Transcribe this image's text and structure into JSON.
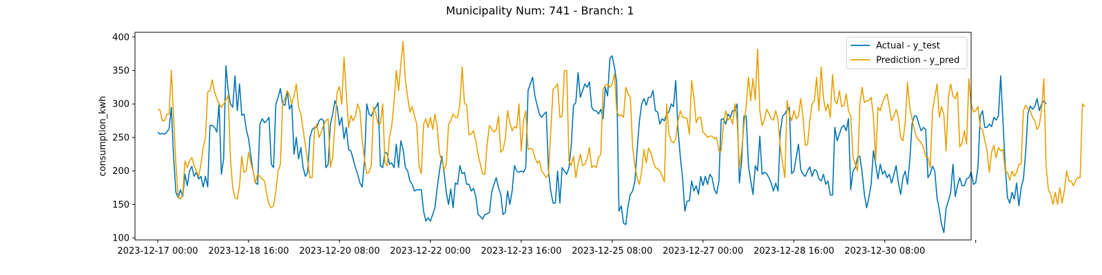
{
  "chart_data": {
    "type": "line",
    "title": "Municipality Num: 741 - Branch: 1",
    "xlabel": "",
    "ylabel": "consumption_kwh",
    "ylim": [
      97,
      407
    ],
    "xlim": [
      "2023-12-16 14:00",
      "2023-12-31 22:00"
    ],
    "yticks": [
      100,
      150,
      200,
      250,
      300,
      350,
      400
    ],
    "xticks": [
      "2023-12-17 00:00",
      "2023-12-18 16:00",
      "2023-12-20 08:00",
      "2023-12-22 00:00",
      "2023-12-23 16:00",
      "2023-12-25 08:00",
      "2023-12-27 00:00",
      "2023-12-28 16:00",
      "2023-12-30 08:00",
      "2024-01-01 00:00"
    ],
    "xtick_labels": [
      "2023-12-17 00:00",
      "2023-12-18 16:00",
      "2023-12-20 08:00",
      "2023-12-22 00:00",
      "2023-12-23 16:00",
      "2023-12-25 08:00",
      "2023-12-27 00:00",
      "2023-12-28 16:00",
      "2023-12-30 08:00",
      ""
    ],
    "x_start": "2023-12-17 00:00",
    "x_step_hours": 1,
    "grid": false,
    "legend_position": "top-right",
    "series": [
      {
        "name": "Actual - y_test",
        "color": "#0072b2",
        "values": [
          258,
          255,
          256,
          255,
          258,
          263,
          295,
          220,
          168,
          160,
          172,
          162,
          195,
          178,
          200,
          207,
          192,
          198,
          188,
          192,
          176,
          192,
          176,
          268,
          268,
          265,
          258,
          300,
          195,
          218,
          357,
          320,
          300,
          295,
          342,
          290,
          330,
          283,
          285,
          262,
          248,
          222,
          200,
          182,
          180,
          270,
          278,
          272,
          275,
          280,
          210,
          205,
          300,
          310,
          323,
          300,
          298,
          320,
          292,
          300,
          225,
          250,
          218,
          235,
          205,
          192,
          198,
          250,
          262,
          265,
          265,
          275,
          278,
          275,
          205,
          210,
          270,
          285,
          305,
          295,
          268,
          280,
          248,
          265,
          232,
          230,
          218,
          205,
          195,
          182,
          176,
          215,
          300,
          285,
          282,
          290,
          295,
          302,
          208,
          205,
          228,
          226,
          210,
          212,
          205,
          240,
          205,
          245,
          232,
          205,
          200,
          185,
          180,
          170,
          172,
          172,
          172,
          140,
          125,
          130,
          125,
          135,
          145,
          175,
          200,
          222,
          198,
          168,
          150,
          173,
          145,
          182,
          180,
          208,
          196,
          198,
          180,
          180,
          170,
          174,
          162,
          135,
          132,
          128,
          135,
          136,
          138,
          168,
          180,
          190,
          175,
          165,
          135,
          138,
          170,
          150,
          170,
          208,
          200,
          198,
          200,
          198,
          205,
          320,
          330,
          340,
          312,
          298,
          285,
          280,
          285,
          288,
          200,
          170,
          152,
          152,
          200,
          152,
          205,
          200,
          195,
          205,
          238,
          298,
          302,
          347,
          310,
          320,
          330,
          325,
          333,
          295,
          290,
          290,
          285,
          292,
          278,
          325,
          312,
          368,
          372,
          355,
          332,
          140,
          148,
          122,
          120,
          148,
          165,
          170,
          185,
          232,
          275,
          300,
          308,
          298,
          310,
          310,
          320,
          290,
          288,
          270,
          278,
          275,
          285,
          288,
          300,
          296,
          335,
          262,
          222,
          190,
          140,
          155,
          155,
          185,
          170,
          178,
          165,
          192,
          178,
          192,
          180,
          195,
          190,
          172,
          166,
          185,
          277,
          278,
          270,
          285,
          280,
          290,
          290,
          300,
          182,
          215,
          282,
          282,
          208,
          185,
          165,
          208,
          200,
          252,
          195,
          198,
          196,
          190,
          182,
          170,
          182,
          170,
          258,
          282,
          285,
          292,
          295,
          196,
          200,
          220,
          240,
          202,
          195,
          192,
          200,
          206,
          192,
          202,
          200,
          188,
          185,
          195,
          180,
          185,
          164,
          164,
          265,
          245,
          255,
          265,
          268,
          260,
          278,
          172,
          200,
          205,
          220,
          222,
          198,
          165,
          145,
          160,
          180,
          230,
          210,
          188,
          210,
          195,
          200,
          190,
          195,
          182,
          195,
          208,
          182,
          165,
          190,
          200,
          180,
          215,
          270,
          282,
          282,
          270,
          260,
          265,
          262,
          190,
          196,
          207,
          200,
          160,
          142,
          120,
          108,
          145,
          155,
          168,
          210,
          162,
          178,
          190,
          178,
          178,
          188,
          190,
          198,
          180,
          182,
          205,
          282,
          290,
          265,
          265,
          270,
          266,
          280,
          276,
          282,
          342,
          275,
          207,
          160,
          152,
          168,
          158,
          182,
          148,
          175,
          188,
          228,
          286,
          297,
          292,
          296,
          308,
          290,
          300,
          305,
          300
        ]
      },
      {
        "name": "Prediction - y_pred",
        "color": "#e69f00",
        "values": [
          292,
          291,
          275,
          275,
          285,
          285,
          350,
          280,
          210,
          162,
          158,
          165,
          215,
          205,
          215,
          220,
          208,
          200,
          192,
          210,
          235,
          250,
          318,
          320,
          336,
          318,
          308,
          300,
          295,
          300,
          306,
          313,
          218,
          175,
          160,
          158,
          178,
          222,
          198,
          200,
          228,
          212,
          200,
          182,
          195,
          192,
          188,
          185,
          165,
          150,
          145,
          148,
          170,
          200,
          210,
          300,
          308,
          320,
          313,
          300,
          312,
          330,
          295,
          286,
          262,
          238,
          215,
          190,
          190,
          262,
          270,
          250,
          258,
          268,
          275,
          278,
          206,
          220,
          270,
          318,
          326,
          300,
          370,
          315,
          265,
          283,
          275,
          282,
          300,
          290,
          245,
          218,
          196,
          198,
          208,
          296,
          285,
          270,
          270,
          300,
          212,
          208,
          250,
          268,
          302,
          350,
          320,
          360,
          393,
          335,
          310,
          288,
          296,
          282,
          270,
          208,
          196,
          270,
          278,
          265,
          280,
          262,
          285,
          265,
          226,
          216,
          202,
          210,
          270,
          275,
          285,
          280,
          280,
          300,
          355,
          302,
          298,
          254,
          255,
          260,
          245,
          225,
          210,
          196,
          195,
          240,
          268,
          263,
          258,
          262,
          282,
          228,
          232,
          248,
          290,
          272,
          260,
          266,
          264,
          300,
          230,
          275,
          290,
          232,
          234,
          232,
          220,
          212,
          215,
          200,
          195,
          190,
          195,
          260,
          322,
          325,
          330,
          280,
          282,
          350,
          350,
          215,
          208,
          222,
          190,
          210,
          225,
          208,
          210,
          218,
          235,
          205,
          208,
          205,
          220,
          225,
          322,
          328,
          330,
          325,
          330,
          345,
          290,
          282,
          284,
          280,
          325,
          315,
          310,
          236,
          208,
          190,
          180,
          200,
          232,
          212,
          234,
          228,
          215,
          205,
          203,
          200,
          193,
          184,
          300,
          255,
          245,
          242,
          248,
          275,
          290,
          280,
          280,
          278,
          255,
          335,
          310,
          272,
          280,
          280,
          258,
          255,
          250,
          252,
          252,
          248,
          250,
          230,
          230,
          270,
          290,
          276,
          280,
          270,
          300,
          275,
          205,
          230,
          268,
          298,
          340,
          305,
          338,
          306,
          382,
          290,
          268,
          276,
          292,
          286,
          278,
          276,
          290,
          276,
          236,
          212,
          190,
          305,
          285,
          275,
          290,
          278,
          282,
          308,
          280,
          238,
          240,
          275,
          300,
          305,
          340,
          290,
          355,
          308,
          290,
          300,
          280,
          344,
          305,
          300,
          320,
          296,
          298,
          315,
          290,
          282,
          220,
          210,
          200,
          300,
          325,
          302,
          305,
          305,
          310,
          282,
          215,
          295,
          290,
          302,
          310,
          315,
          296,
          275,
          282,
          292,
          280,
          250,
          245,
          272,
          332,
          295,
          278,
          262,
          250,
          246,
          242,
          235,
          222,
          220,
          205,
          290,
          310,
          330,
          280,
          296,
          284,
          230,
          310,
          330,
          312,
          308,
          318,
          236,
          242,
          260,
          240,
          338,
          300,
          288,
          290,
          296,
          265,
          262,
          246,
          230,
          198,
          228,
          238,
          220,
          235,
          230,
          232,
          200,
          198,
          186,
          200,
          192,
          198,
          210,
          210,
          290,
          298,
          292,
          290,
          280,
          275,
          262,
          268,
          292,
          338,
          206,
          172,
          165,
          150,
          168,
          150,
          175,
          152,
          170,
          200,
          185,
          185,
          178,
          186,
          190,
          190,
          300,
          296
        ]
      }
    ]
  }
}
